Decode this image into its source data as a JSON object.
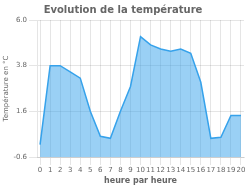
{
  "chart_data": {
    "type": "area",
    "title": "Evolution de la température",
    "x_label": "heure par heure",
    "y_label": "Température en °C",
    "x": [
      0,
      1,
      2,
      3,
      4,
      5,
      6,
      7,
      8,
      9,
      10,
      11,
      12,
      13,
      14,
      15,
      16,
      17,
      18,
      19,
      20
    ],
    "values": [
      0.0,
      3.8,
      3.8,
      3.5,
      3.2,
      1.6,
      0.4,
      0.3,
      1.6,
      2.8,
      5.2,
      4.8,
      4.6,
      4.5,
      4.6,
      4.4,
      3.0,
      0.3,
      0.35,
      1.4,
      1.4
    ],
    "xlim": [
      -0.3,
      20.3
    ],
    "xticks": [
      0,
      1,
      2,
      3,
      4,
      5,
      6,
      7,
      8,
      9,
      10,
      11,
      12,
      13,
      14,
      15,
      16,
      17,
      18,
      19,
      20
    ],
    "ylim": [
      -0.6,
      6.0
    ],
    "yticks": [
      -0.6,
      1.6,
      3.8,
      {
        "value": 6.0,
        "label": "6.0"
      }
    ],
    "grid": true
  }
}
